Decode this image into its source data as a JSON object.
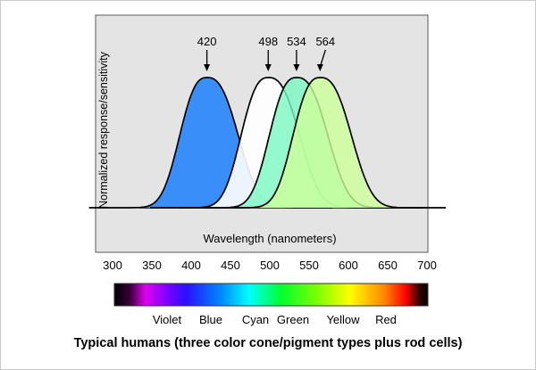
{
  "chart_data": {
    "type": "area",
    "title": "",
    "xlabel": "Wavelength (nanometers)",
    "ylabel": "Normalized response/sensitivity",
    "xlim": [
      300,
      700
    ],
    "x_ticks": [
      300,
      350,
      400,
      450,
      500,
      550,
      600,
      650,
      700
    ],
    "y_ticks": [],
    "grid": false,
    "legend": "none",
    "series": [
      {
        "peak": 420,
        "color": "#3a8ef8",
        "opacity": 1.0
      },
      {
        "peak": 498,
        "color": "#ffffff",
        "opacity": 0.9
      },
      {
        "peak": 534,
        "color": "#7af7c2",
        "opacity": 0.8
      },
      {
        "peak": 564,
        "color": "#ccff9a",
        "opacity": 0.8
      }
    ],
    "peak_annotations": [
      "420",
      "498",
      "534",
      "564"
    ],
    "spectrum_labels": [
      "Violet",
      "Blue",
      "Cyan",
      "Green",
      "Yellow",
      "Red"
    ]
  },
  "caption": "Typical humans (three color cone/pigment types plus rod cells)"
}
